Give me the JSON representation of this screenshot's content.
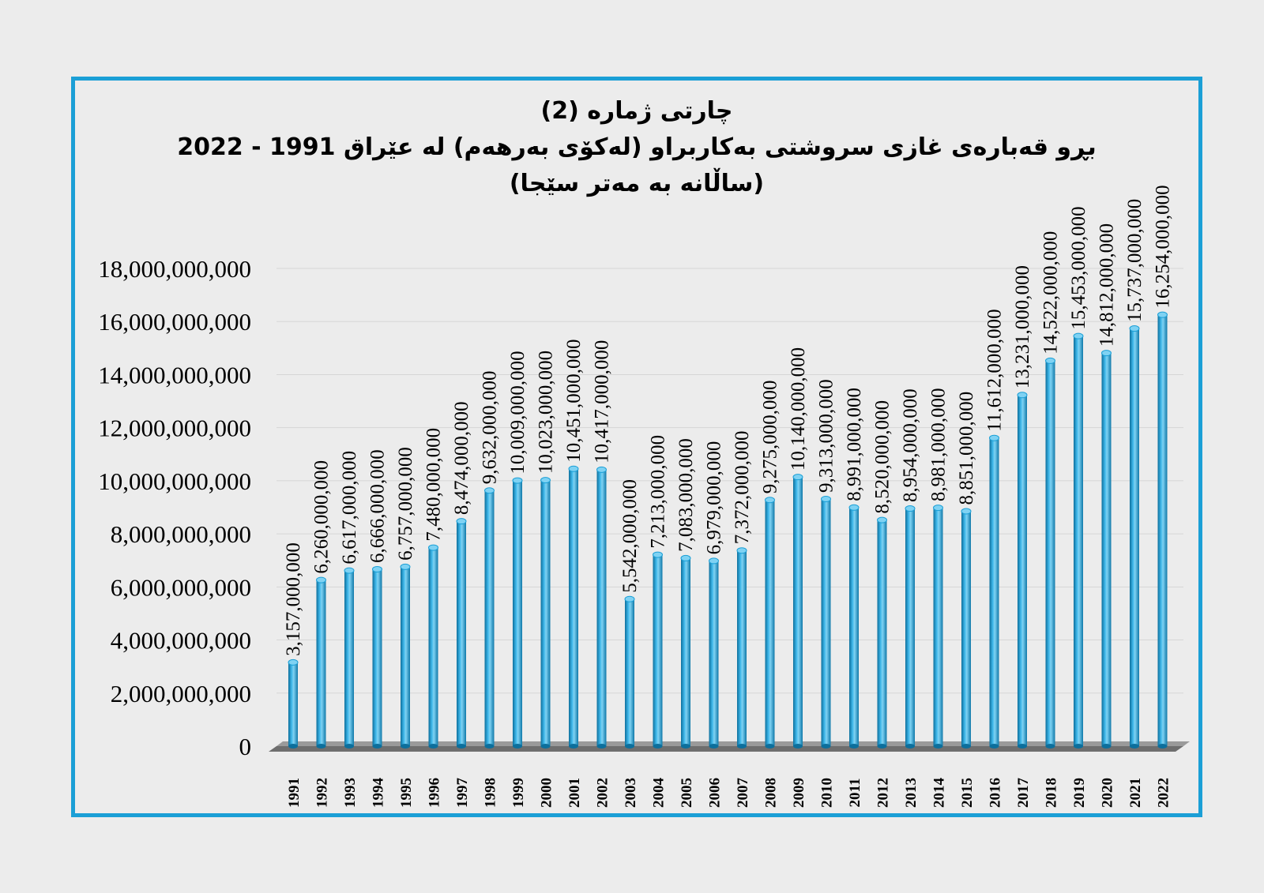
{
  "chart_data": {
    "type": "bar",
    "title": "چارتی ژماره (2)",
    "subtitle": "بڕو قەبارەی غازی سروشتی  بەکاربراو (لەکۆی بەرهەم) لە عێراق 1991 - 2022",
    "subtitle2": "(ساڵانە بە مەتر سێجا)",
    "xlabel": "",
    "ylabel": "",
    "ylim": [
      0,
      18000000000
    ],
    "yticks": [
      0,
      2000000000,
      4000000000,
      6000000000,
      8000000000,
      10000000000,
      12000000000,
      14000000000,
      16000000000,
      18000000000
    ],
    "ytick_labels": [
      "0",
      "2,000,000,000",
      "4,000,000,000",
      "6,000,000,000",
      "8,000,000,000",
      "10,000,000,000",
      "12,000,000,000",
      "14,000,000,000",
      "16,000,000,000",
      "18,000,000,000"
    ],
    "grid": true,
    "categories": [
      "1991",
      "1992",
      "1993",
      "1994",
      "1995",
      "1996",
      "1997",
      "1998",
      "1999",
      "2000",
      "2001",
      "2002",
      "2003",
      "2004",
      "2005",
      "2006",
      "2007",
      "2008",
      "2009",
      "2010",
      "2011",
      "2012",
      "2013",
      "2014",
      "2015",
      "2016",
      "2017",
      "2018",
      "2019",
      "2020",
      "2021",
      "2022"
    ],
    "values": [
      3157000000,
      6260000000,
      6617000000,
      6666000000,
      6757000000,
      7480000000,
      8474000000,
      9632000000,
      10009000000,
      10023000000,
      10451000000,
      10417000000,
      5542000000,
      7213000000,
      7083000000,
      6979000000,
      7372000000,
      9275000000,
      10140000000,
      9313000000,
      8991000000,
      8520000000,
      8954000000,
      8981000000,
      8851000000,
      11612000000,
      13231000000,
      14522000000,
      15453000000,
      14812000000,
      15737000000,
      16254000000
    ],
    "value_labels": [
      "3,157,000,000",
      "6,260,000,000",
      "6,617,000,000",
      "6,666,000,000",
      "6,757,000,000",
      "7,480,000,000",
      "8,474,000,000",
      "9,632,000,000",
      "10,009,000,000",
      "10,023,000,000",
      "10,451,000,000",
      "10,417,000,000",
      "5,542,000,000",
      "7,213,000,000",
      "7,083,000,000",
      "6,979,000,000",
      "7,372,000,000",
      "9,275,000,000",
      "10,140,000,000",
      "9,313,000,000",
      "8,991,000,000",
      "8,520,000,000",
      "8,954,000,000",
      "8,981,000,000",
      "8,851,000,000",
      "11,612,000,000",
      "13,231,000,000",
      "14,522,000,000",
      "15,453,000,000",
      "14,812,000,000",
      "15,737,000,000",
      "16,254,000,000"
    ],
    "colors": {
      "bar": "#1b9fd6",
      "bar_dark": "#0d6f9c",
      "bar_light": "#7fd2f3",
      "frame": "#1b9fd6",
      "grid": "#d6d6d6",
      "floor": "#6e6e6e"
    }
  }
}
